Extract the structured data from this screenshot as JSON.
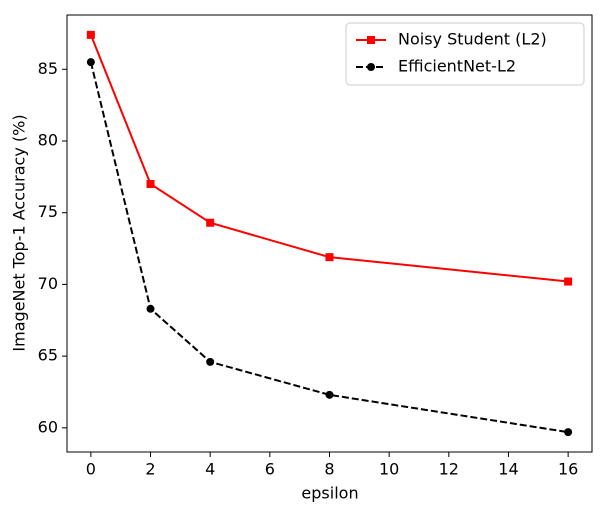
{
  "chart_data": {
    "type": "line",
    "xlabel": "epsilon",
    "ylabel": "ImageNet Top-1 Accuracy (%)",
    "x": [
      0,
      2,
      4,
      8,
      16
    ],
    "series": [
      {
        "name": "Noisy Student (L2)",
        "color": "#ff0000",
        "linestyle": "solid",
        "marker": "square",
        "values": [
          87.4,
          77.0,
          74.3,
          71.9,
          70.2
        ]
      },
      {
        "name": "EfficientNet-L2",
        "color": "#000000",
        "linestyle": "dashed",
        "marker": "circle",
        "values": [
          85.5,
          68.3,
          64.6,
          62.3,
          59.7
        ]
      }
    ],
    "xlim": [
      -0.8,
      16.8
    ],
    "xticks": [
      0,
      2,
      4,
      6,
      8,
      10,
      12,
      14,
      16
    ],
    "ylim": [
      58.315,
      88.785
    ],
    "yticks": [
      60,
      65,
      70,
      75,
      80,
      85
    ],
    "grid": false,
    "legend": "upper right"
  }
}
